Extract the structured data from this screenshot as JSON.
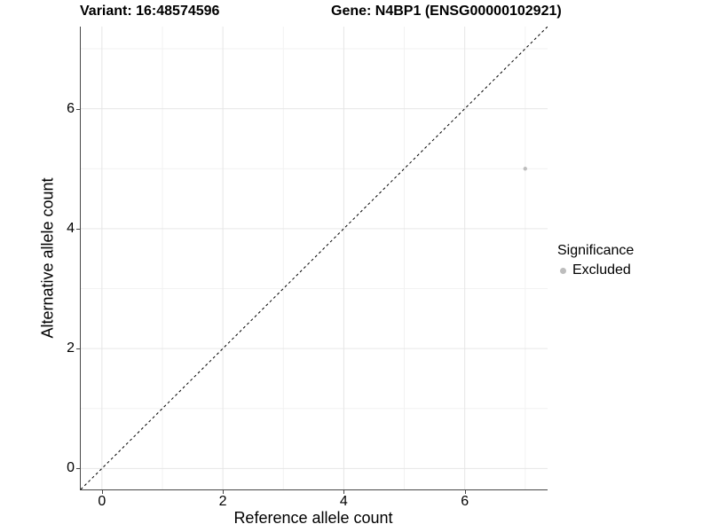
{
  "chart_data": {
    "type": "scatter",
    "titles": [
      "Variant: 16:48574596",
      "Gene: N4BP1 (ENSG00000102921)"
    ],
    "xlabel": "Reference allele count",
    "ylabel": "Alternative allele count",
    "xlim": [
      -0.35,
      7.37
    ],
    "ylim": [
      -0.35,
      7.37
    ],
    "x_ticks": [
      0,
      2,
      4,
      6
    ],
    "y_ticks": [
      0,
      2,
      4,
      6
    ],
    "x_tick_labels": [
      "0",
      "2",
      "4",
      "6"
    ],
    "y_tick_labels": [
      "0",
      "2",
      "4",
      "6"
    ],
    "x_minor_gridlines": [
      1,
      3,
      5,
      7
    ],
    "y_minor_gridlines": [
      1,
      3,
      5,
      7
    ],
    "grid": "on",
    "series": [
      {
        "name": "Excluded",
        "color": "#bdbdbd",
        "marker_radius": 2.2,
        "points": [
          {
            "x": 7,
            "y": 5
          }
        ]
      }
    ],
    "identity_line": {
      "slope": 1,
      "intercept": 0,
      "style": "dashed",
      "color": "#000000"
    },
    "legend": {
      "title": "Significance",
      "position": "right",
      "entries": [
        {
          "label": "Excluded",
          "color": "#bdbdbd"
        }
      ]
    }
  },
  "colors": {
    "background": "#ffffff",
    "grid_major": "#e6e6e6",
    "grid_minor": "#f2f2f2",
    "axis_line": "#474747",
    "text": "#000000",
    "excluded_point": "#bdbdbd"
  }
}
